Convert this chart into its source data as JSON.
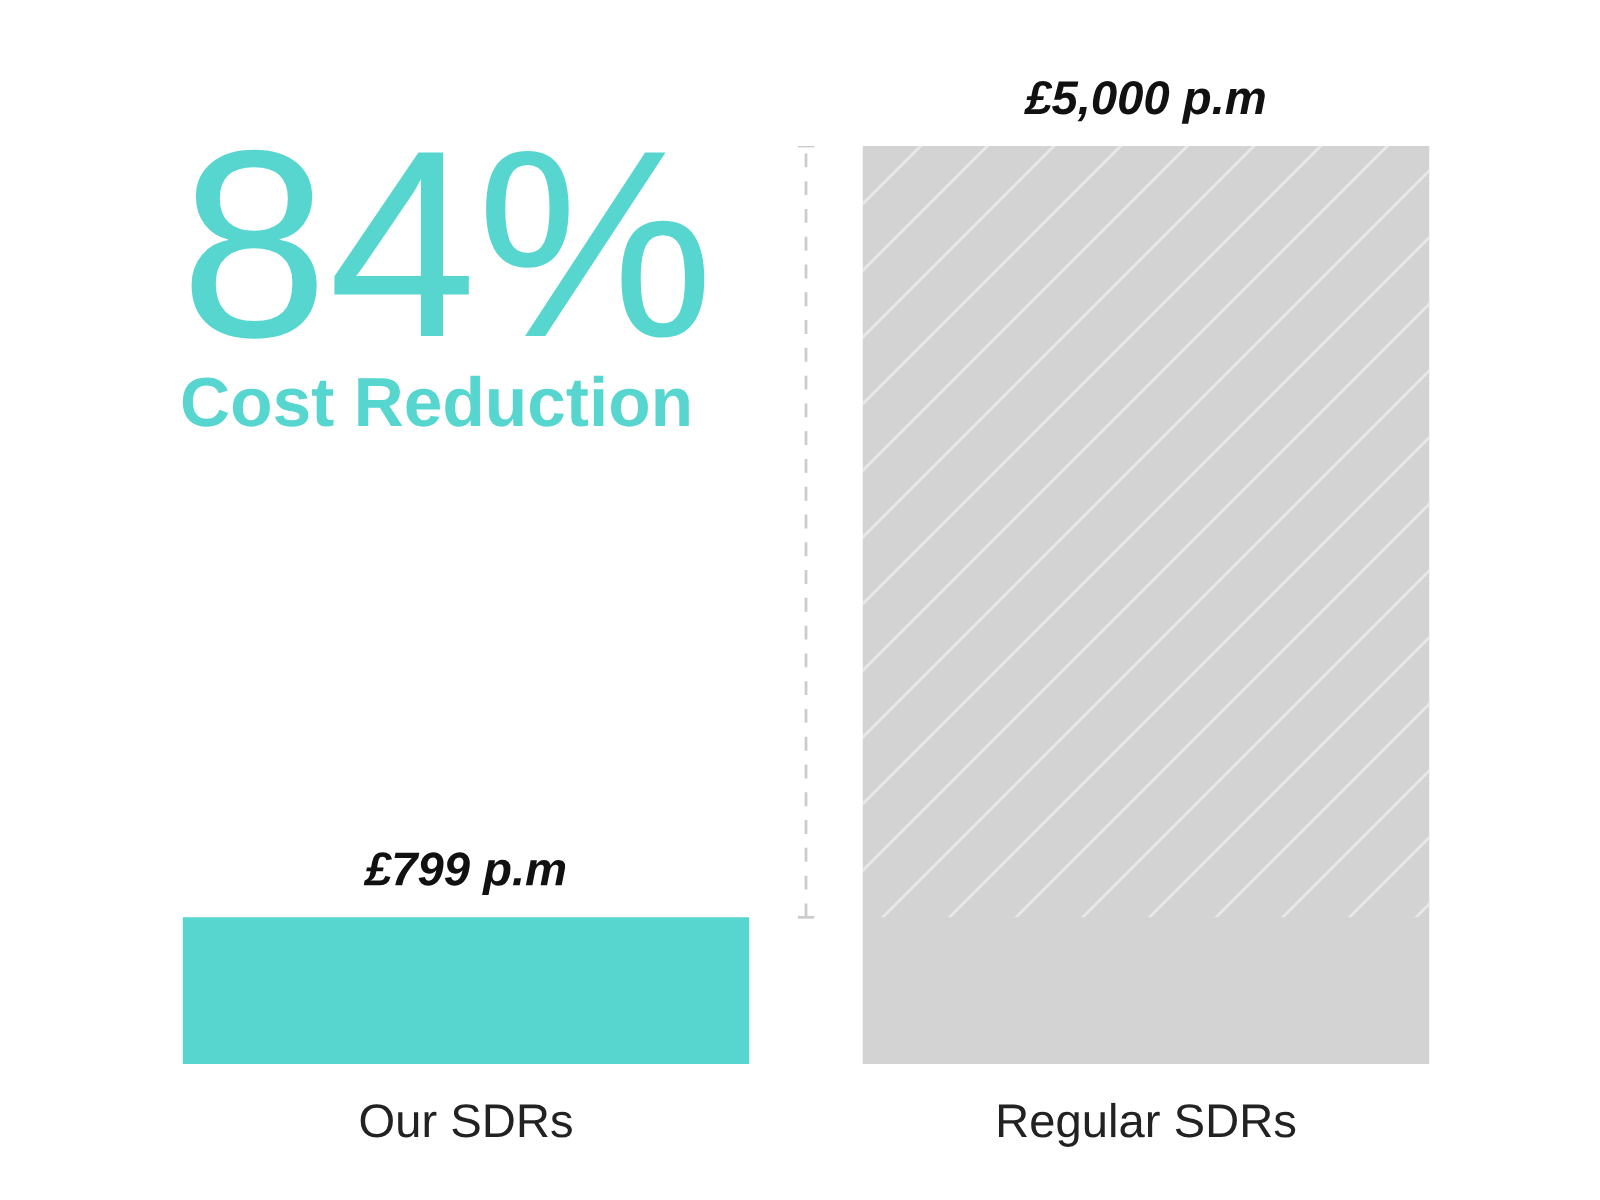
{
  "chart_data": {
    "type": "bar",
    "categories": [
      "Our SDRs",
      "Regular SDRs"
    ],
    "values": [
      799,
      5000
    ],
    "colors": [
      "#56d6cf",
      "#d3d3d3"
    ],
    "value_labels": [
      "£799 p.m",
      "£5,000 p.m"
    ],
    "annotations": [
      "84%",
      "Cost Reduction"
    ],
    "grid": false,
    "legend": false
  }
}
